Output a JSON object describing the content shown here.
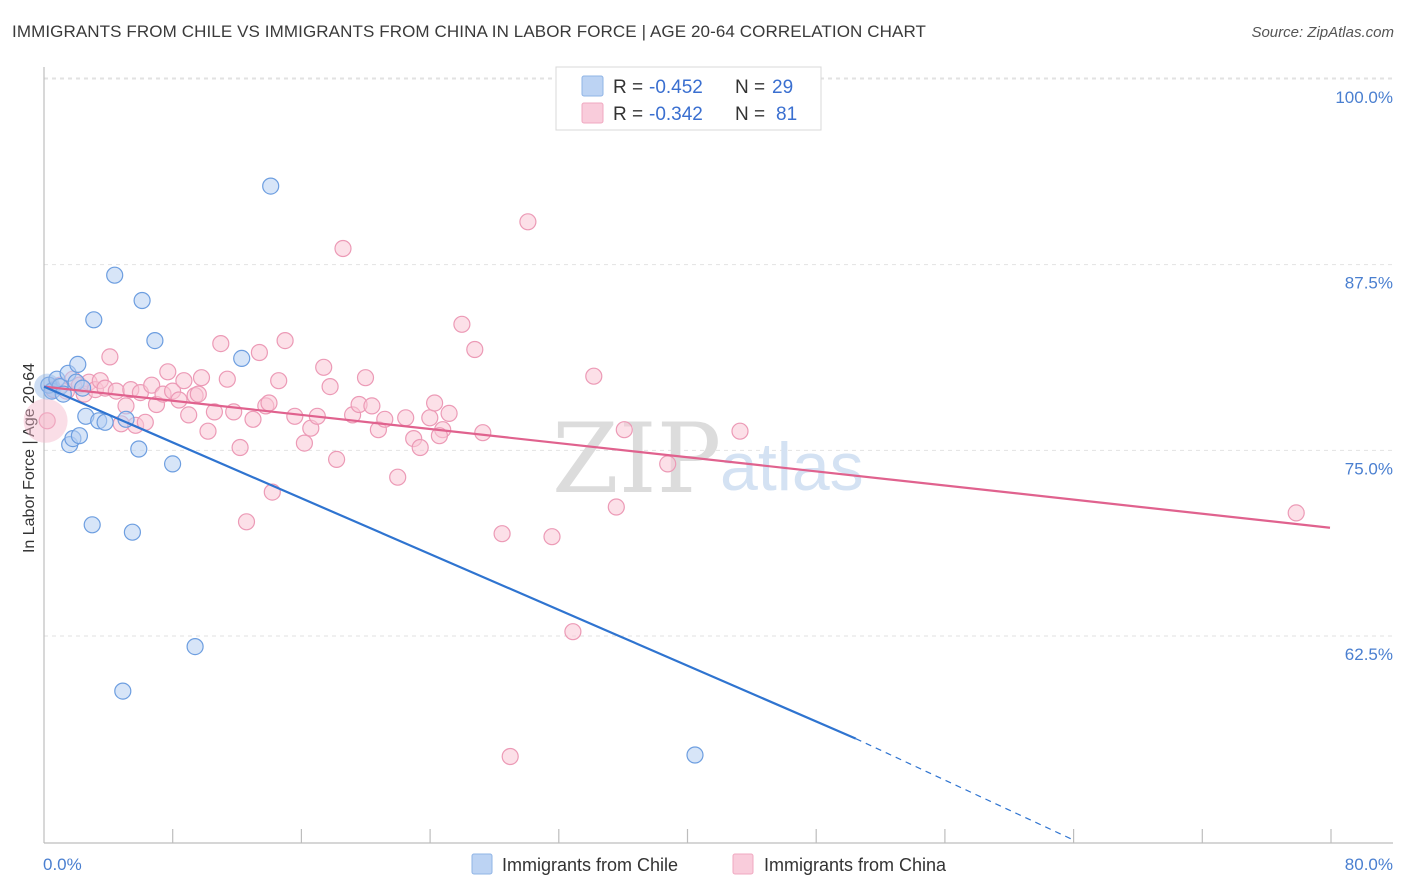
{
  "header": {
    "title": "IMMIGRANTS FROM CHILE VS IMMIGRANTS FROM CHINA IN LABOR FORCE | AGE 20-64 CORRELATION CHART",
    "source": "Source: ZipAtlas.com"
  },
  "watermark": {
    "zip": "ZIP",
    "atlas": "atlas"
  },
  "chart_data": {
    "type": "scatter",
    "title": "IMMIGRANTS FROM CHILE VS IMMIGRANTS FROM CHINA IN LABOR FORCE | AGE 20-64 CORRELATION CHART",
    "ylabel": "In Labor Force | Age 20-64",
    "xlabel": "",
    "xlim": [
      0,
      80
    ],
    "ylim": [
      50,
      102
    ],
    "x_tick_labels": {
      "min": "0.0%",
      "max": "80.0%"
    },
    "y_ticks": [
      {
        "value": 100,
        "label": "100.0%"
      },
      {
        "value": 87.5,
        "label": "87.5%"
      },
      {
        "value": 75,
        "label": "75.0%"
      },
      {
        "value": 62.5,
        "label": "62.5%"
      }
    ],
    "grid": "horizontal dashed",
    "legend": [
      {
        "series": "chile",
        "r_label": "R = ",
        "r_value": "-0.452",
        "n_label": "N = ",
        "n_value": "29"
      },
      {
        "series": "china",
        "r_label": "R = ",
        "r_value": "-0.342",
        "n_label": "N = ",
        "n_value": "81"
      }
    ],
    "series": [
      {
        "name": "Immigrants from Chile",
        "key": "chile",
        "color": "#9ec0ec",
        "line_color": "#2f74d0",
        "trend": {
          "x0": 0,
          "y0": 80.5,
          "x1": 50.5,
          "y1": 56.8,
          "dash_to_x": 64,
          "dash_to_y": 50
        },
        "points": [
          [
            0.3,
            80.6
          ],
          [
            0.5,
            80.2
          ],
          [
            0.8,
            81.0
          ],
          [
            1.0,
            80.5
          ],
          [
            1.2,
            80.0
          ],
          [
            1.5,
            81.4
          ],
          [
            2.0,
            80.8
          ],
          [
            1.6,
            76.6
          ],
          [
            1.8,
            77.0
          ],
          [
            2.1,
            82.0
          ],
          [
            2.2,
            77.2
          ],
          [
            2.4,
            80.4
          ],
          [
            2.6,
            78.5
          ],
          [
            3.0,
            71.2
          ],
          [
            3.1,
            85.0
          ],
          [
            3.4,
            78.2
          ],
          [
            3.8,
            78.1
          ],
          [
            4.4,
            88.0
          ],
          [
            5.1,
            78.3
          ],
          [
            5.5,
            70.7
          ],
          [
            5.9,
            76.3
          ],
          [
            6.1,
            86.3
          ],
          [
            6.9,
            83.6
          ],
          [
            8.0,
            75.3
          ],
          [
            9.4,
            63.0
          ],
          [
            4.9,
            60.0
          ],
          [
            12.3,
            82.4
          ],
          [
            14.1,
            94.0
          ],
          [
            40.5,
            55.7
          ]
        ]
      },
      {
        "name": "Immigrants from China",
        "key": "china",
        "color": "#f5b6ca",
        "line_color": "#e0628e",
        "trend": {
          "x0": 0,
          "y0": 80.5,
          "x1": 80,
          "y1": 71.0
        },
        "points": [
          [
            0.2,
            78.2
          ],
          [
            0.6,
            80.3
          ],
          [
            1.0,
            80.6
          ],
          [
            1.4,
            80.2
          ],
          [
            1.8,
            81.0
          ],
          [
            2.2,
            80.6
          ],
          [
            2.5,
            80.0
          ],
          [
            2.8,
            80.8
          ],
          [
            3.2,
            80.3
          ],
          [
            3.5,
            80.9
          ],
          [
            3.8,
            80.4
          ],
          [
            4.1,
            82.5
          ],
          [
            4.5,
            80.2
          ],
          [
            4.8,
            78.0
          ],
          [
            5.1,
            79.2
          ],
          [
            5.4,
            80.3
          ],
          [
            5.7,
            77.9
          ],
          [
            6.0,
            80.1
          ],
          [
            6.3,
            78.1
          ],
          [
            6.7,
            80.6
          ],
          [
            7.0,
            79.3
          ],
          [
            7.4,
            80.0
          ],
          [
            7.7,
            81.5
          ],
          [
            8.0,
            80.2
          ],
          [
            8.4,
            79.6
          ],
          [
            8.7,
            80.9
          ],
          [
            9.0,
            78.6
          ],
          [
            9.4,
            79.9
          ],
          [
            9.8,
            81.1
          ],
          [
            10.2,
            77.5
          ],
          [
            10.6,
            78.8
          ],
          [
            11.0,
            83.4
          ],
          [
            11.4,
            81.0
          ],
          [
            11.8,
            78.8
          ],
          [
            12.2,
            76.4
          ],
          [
            12.6,
            71.4
          ],
          [
            13.0,
            78.3
          ],
          [
            13.4,
            82.8
          ],
          [
            13.8,
            79.2
          ],
          [
            14.2,
            73.4
          ],
          [
            14.6,
            80.9
          ],
          [
            15.0,
            83.6
          ],
          [
            15.6,
            78.5
          ],
          [
            16.2,
            76.7
          ],
          [
            16.6,
            77.7
          ],
          [
            17.0,
            78.5
          ],
          [
            17.4,
            81.8
          ],
          [
            17.8,
            80.5
          ],
          [
            18.2,
            75.6
          ],
          [
            18.6,
            89.8
          ],
          [
            19.2,
            78.6
          ],
          [
            19.6,
            79.3
          ],
          [
            20.0,
            81.1
          ],
          [
            20.4,
            79.2
          ],
          [
            20.8,
            77.6
          ],
          [
            21.2,
            78.3
          ],
          [
            22.0,
            74.4
          ],
          [
            22.5,
            78.4
          ],
          [
            23.0,
            77.0
          ],
          [
            23.4,
            76.4
          ],
          [
            24.0,
            78.4
          ],
          [
            24.3,
            79.4
          ],
          [
            24.8,
            77.6
          ],
          [
            25.2,
            78.7
          ],
          [
            26.0,
            84.7
          ],
          [
            26.8,
            83.0
          ],
          [
            27.3,
            77.4
          ],
          [
            28.5,
            70.6
          ],
          [
            29.0,
            55.6
          ],
          [
            30.1,
            91.6
          ],
          [
            31.6,
            70.4
          ],
          [
            32.9,
            64.0
          ],
          [
            34.2,
            81.2
          ],
          [
            35.6,
            72.4
          ],
          [
            36.1,
            77.6
          ],
          [
            38.8,
            75.3
          ],
          [
            43.3,
            77.5
          ],
          [
            77.9,
            72.0
          ],
          [
            14.0,
            79.4
          ],
          [
            9.6,
            80.0
          ],
          [
            24.6,
            77.2
          ]
        ]
      }
    ]
  },
  "bottom_legend": [
    {
      "key": "chile",
      "label": "Immigrants from Chile"
    },
    {
      "key": "china",
      "label": "Immigrants from China"
    }
  ]
}
